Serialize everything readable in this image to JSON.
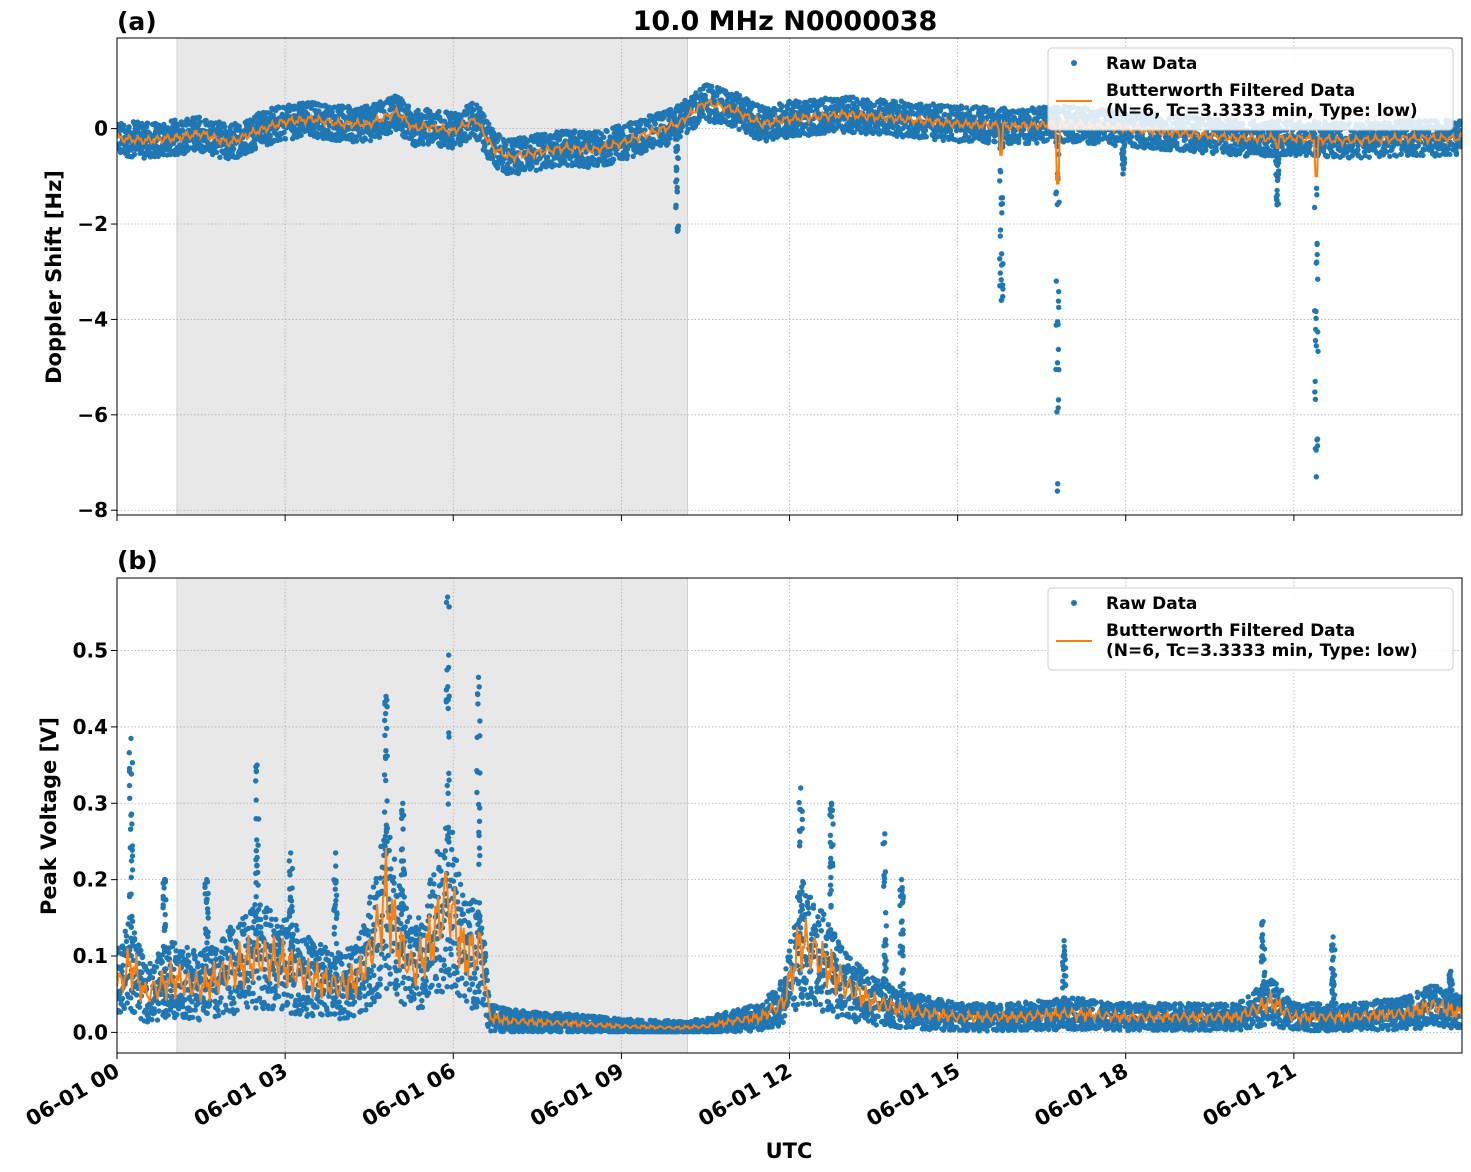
{
  "figure": {
    "title": "10.0 MHz N0000038",
    "xlabel": "UTC",
    "xlim_hours": [
      0,
      24
    ],
    "x_ticks": [
      {
        "hour": 0,
        "label": "06-01 00"
      },
      {
        "hour": 3,
        "label": "06-01 03"
      },
      {
        "hour": 6,
        "label": "06-01 06"
      },
      {
        "hour": 9,
        "label": "06-01 09"
      },
      {
        "hour": 12,
        "label": "06-01 12"
      },
      {
        "hour": 15,
        "label": "06-01 15"
      },
      {
        "hour": 18,
        "label": "06-01 18"
      },
      {
        "hour": 21,
        "label": "06-01 21"
      }
    ],
    "shaded_region_hours": [
      1.07,
      10.18
    ],
    "colors": {
      "raw": "#1f77b4",
      "filtered": "#ff7f0e",
      "shade": "#e8e8e8",
      "grid": "#b0b0b0"
    }
  },
  "chart_data": [
    {
      "type": "scatter",
      "panel_label": "(a)",
      "ylabel": "Doppler Shift [Hz]",
      "ylim": [
        -8.1,
        1.9
      ],
      "y_ticks": [
        {
          "value": 0,
          "label": "0"
        },
        {
          "value": -2,
          "label": "−2"
        },
        {
          "value": -4,
          "label": "−4"
        },
        {
          "value": -6,
          "label": "−6"
        },
        {
          "value": -8,
          "label": "−8"
        }
      ],
      "grid": true,
      "legend": {
        "placement": "upper-right",
        "entries": [
          {
            "label": "Raw Data"
          },
          {
            "label": "Butterworth Filtered Data",
            "label2": "(N=6, Tc=3.3333 min, Type: low)"
          }
        ]
      },
      "trend": {
        "hours": [
          0,
          0.5,
          1.0,
          1.5,
          2.0,
          2.5,
          3.0,
          3.5,
          4.0,
          4.5,
          5.0,
          5.3,
          5.5,
          6.0,
          6.4,
          6.7,
          7.0,
          7.5,
          8.0,
          8.5,
          9.0,
          9.5,
          10.0,
          10.5,
          11.0,
          11.5,
          12.0,
          13.0,
          14.0,
          15.0,
          16.0,
          17.0,
          18.0,
          19.0,
          20.0,
          21.0,
          22.0,
          23.0,
          24.0
        ],
        "values": [
          -0.2,
          -0.25,
          -0.2,
          -0.1,
          -0.3,
          -0.05,
          0.15,
          0.2,
          0.1,
          0.1,
          0.35,
          0.0,
          0.05,
          -0.05,
          0.2,
          -0.4,
          -0.6,
          -0.5,
          -0.4,
          -0.45,
          -0.3,
          -0.1,
          0.1,
          0.55,
          0.4,
          0.1,
          0.2,
          0.3,
          0.2,
          0.1,
          0.05,
          0.1,
          0.0,
          -0.1,
          -0.2,
          -0.2,
          -0.25,
          -0.2,
          -0.2
        ]
      },
      "spikes": [
        {
          "hour": 10.0,
          "min": -2.15,
          "filtered_min": 0.1
        },
        {
          "hour": 15.78,
          "min": -3.6,
          "filtered_min": -0.55
        },
        {
          "hour": 16.78,
          "min": -7.6,
          "filtered_min": -1.15
        },
        {
          "hour": 17.95,
          "min": -0.95,
          "filtered_min": 0.0
        },
        {
          "hour": 20.7,
          "min": -1.6,
          "filtered_min": -0.4
        },
        {
          "hour": 21.4,
          "min": -7.3,
          "filtered_min": -1.0
        }
      ]
    },
    {
      "type": "scatter",
      "panel_label": "(b)",
      "ylabel": "Peak Voltage [V]",
      "ylim": [
        -0.027,
        0.595
      ],
      "y_ticks": [
        {
          "value": 0.0,
          "label": "0.0"
        },
        {
          "value": 0.1,
          "label": "0.1"
        },
        {
          "value": 0.2,
          "label": "0.2"
        },
        {
          "value": 0.3,
          "label": "0.3"
        },
        {
          "value": 0.4,
          "label": "0.4"
        },
        {
          "value": 0.5,
          "label": "0.5"
        }
      ],
      "grid": true,
      "legend": {
        "placement": "upper-right",
        "entries": [
          {
            "label": "Raw Data"
          },
          {
            "label": "Butterworth Filtered Data",
            "label2": "(N=6, Tc=3.3333 min, Type: low)"
          }
        ]
      },
      "trend": {
        "hours": [
          0,
          0.25,
          0.5,
          1.0,
          1.5,
          2.0,
          2.5,
          3.0,
          3.5,
          4.0,
          4.3,
          4.6,
          4.8,
          5.0,
          5.3,
          5.6,
          5.9,
          6.2,
          6.5,
          6.65,
          7.0,
          8.0,
          9.0,
          10.0,
          10.5,
          11.0,
          11.5,
          11.9,
          12.2,
          12.5,
          13.0,
          13.5,
          14.0,
          15.0,
          16.0,
          17.0,
          18.0,
          19.0,
          20.0,
          20.6,
          21.0,
          22.0,
          23.0,
          23.5,
          24.0
        ],
        "values": [
          0.06,
          0.09,
          0.05,
          0.07,
          0.06,
          0.08,
          0.1,
          0.09,
          0.07,
          0.06,
          0.07,
          0.12,
          0.18,
          0.12,
          0.08,
          0.12,
          0.18,
          0.1,
          0.11,
          0.02,
          0.015,
          0.012,
          0.008,
          0.006,
          0.008,
          0.015,
          0.02,
          0.04,
          0.12,
          0.1,
          0.06,
          0.04,
          0.03,
          0.02,
          0.02,
          0.025,
          0.02,
          0.02,
          0.02,
          0.04,
          0.02,
          0.02,
          0.025,
          0.035,
          0.025
        ]
      },
      "spikes": [
        {
          "hour": 0.25,
          "max": 0.385
        },
        {
          "hour": 0.85,
          "max": 0.2
        },
        {
          "hour": 1.6,
          "max": 0.2
        },
        {
          "hour": 2.5,
          "max": 0.35
        },
        {
          "hour": 3.1,
          "max": 0.235
        },
        {
          "hour": 3.9,
          "max": 0.235
        },
        {
          "hour": 4.8,
          "max": 0.44
        },
        {
          "hour": 5.1,
          "max": 0.3
        },
        {
          "hour": 5.9,
          "max": 0.57
        },
        {
          "hour": 6.45,
          "max": 0.465
        },
        {
          "hour": 12.2,
          "max": 0.32
        },
        {
          "hour": 12.75,
          "max": 0.3
        },
        {
          "hour": 13.7,
          "max": 0.26
        },
        {
          "hour": 14.0,
          "max": 0.2
        },
        {
          "hour": 16.9,
          "max": 0.12
        },
        {
          "hour": 20.45,
          "max": 0.145
        },
        {
          "hour": 21.7,
          "max": 0.125
        },
        {
          "hour": 23.8,
          "max": 0.08
        }
      ]
    }
  ]
}
